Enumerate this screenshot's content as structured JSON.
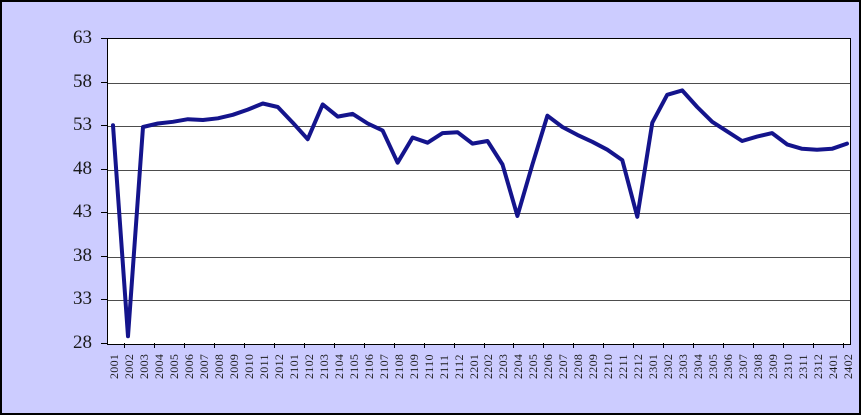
{
  "chart_data": {
    "type": "line",
    "title": "",
    "xlabel": "",
    "ylabel": "",
    "legend": "none",
    "grid": "horizontal",
    "ylim": [
      28,
      63
    ],
    "yticks": [
      28,
      33,
      38,
      43,
      48,
      53,
      58,
      63
    ],
    "background": "#ccccff",
    "plot_background": "#ffffff",
    "line_color": "#14148c",
    "gridline_color": "#4d4d4d",
    "categories": [
      "2001",
      "2002",
      "2003",
      "2004",
      "2005",
      "2006",
      "2007",
      "2008",
      "2009",
      "2010",
      "2011",
      "2012",
      "2101",
      "2102",
      "2103",
      "2104",
      "2105",
      "2106",
      "2107",
      "2108",
      "2109",
      "2110",
      "2111",
      "2112",
      "2201",
      "2202",
      "2203",
      "2204",
      "2205",
      "2206",
      "2207",
      "2208",
      "2209",
      "2210",
      "2211",
      "2212",
      "2301",
      "2302",
      "2303",
      "2304",
      "2305",
      "2306",
      "2307",
      "2308",
      "2309",
      "2310",
      "2311",
      "2312",
      "2401",
      "2402"
    ],
    "values": [
      53.1,
      28.9,
      52.9,
      53.3,
      53.5,
      53.8,
      53.7,
      53.9,
      54.3,
      54.9,
      55.6,
      55.2,
      53.4,
      51.5,
      55.5,
      54.1,
      54.4,
      53.3,
      52.5,
      48.8,
      51.7,
      51.1,
      52.2,
      52.3,
      51.0,
      51.3,
      48.6,
      42.7,
      48.6,
      54.2,
      52.9,
      52.0,
      51.2,
      50.3,
      49.1,
      42.6,
      53.4,
      56.6,
      57.1,
      55.2,
      53.5,
      52.4,
      51.3,
      51.8,
      52.2,
      50.9,
      50.4,
      50.3,
      50.4,
      51.0
    ]
  }
}
